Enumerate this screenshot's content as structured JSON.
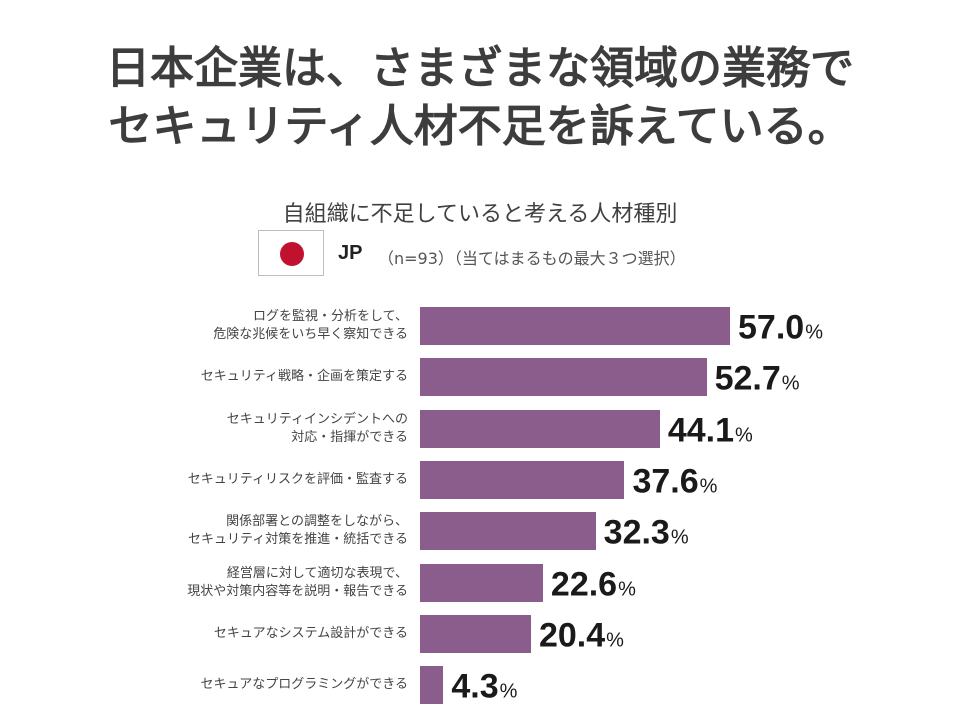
{
  "title_lines": [
    "日本企業は、さまざまな領域の業務で",
    "セキュリティ人材不足を訴えている。"
  ],
  "legend": {
    "country": "JP",
    "sample": "（n=93）（当てはまるもの最大３つ選択）",
    "flag_colors": {
      "field": "#ffffff",
      "sun": "#c0122e"
    }
  },
  "chart_data": {
    "type": "bar",
    "orientation": "horizontal",
    "title": "自組織に不足していると考える人材種別",
    "unit": "%",
    "bar_color": "#8b5d8d",
    "categories": [
      [
        "ログを監視・分析をして、",
        "危険な兆候をいち早く察知できる"
      ],
      [
        "セキュリティ戦略・企画を策定する"
      ],
      [
        "セキュリティインシデントへの",
        "対応・指揮ができる"
      ],
      [
        "セキュリティリスクを評価・監査する"
      ],
      [
        "関係部署との調整をしながら、",
        "セキュリティ対策を推進・統括できる"
      ],
      [
        "経営層に対して適切な表現で、",
        "現状や対策内容等を説明・報告できる"
      ],
      [
        "セキュアなシステム設計ができる"
      ],
      [
        "セキュアなプログラミングができる"
      ]
    ],
    "values": [
      57.0,
      52.7,
      44.1,
      37.6,
      32.3,
      22.6,
      20.4,
      4.3
    ],
    "value_labels": [
      "57.0",
      "52.7",
      "44.1",
      "37.6",
      "32.3",
      "22.6",
      "20.4",
      "4.3"
    ]
  }
}
